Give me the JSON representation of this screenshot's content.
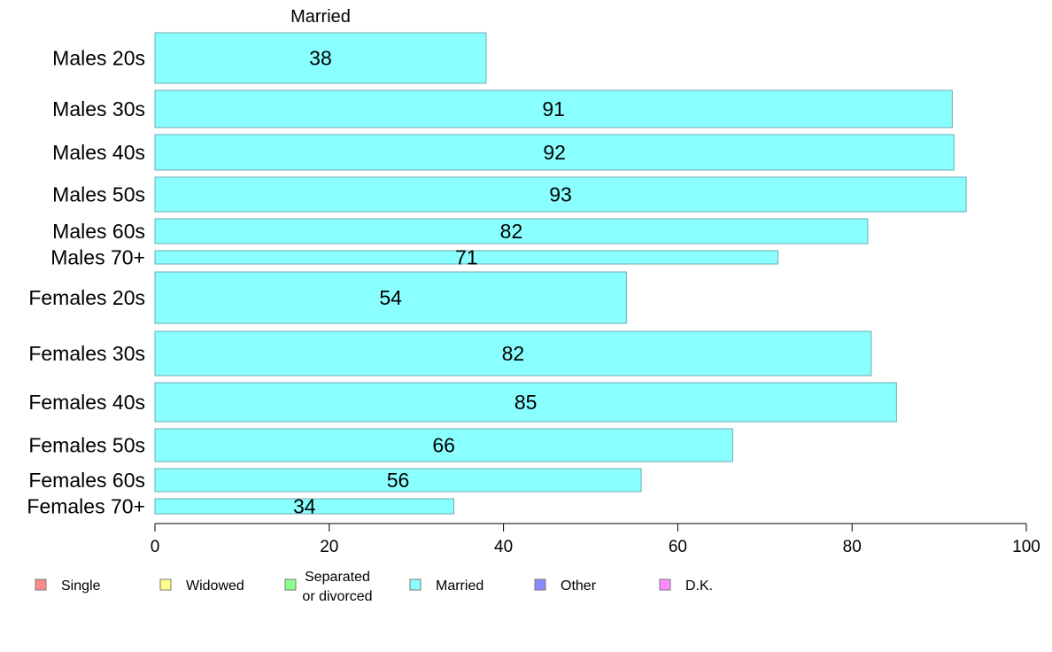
{
  "chart_data": {
    "type": "bar",
    "orientation": "horizontal",
    "stacked": true,
    "column_header": "Married",
    "categories": [
      "Males 20s",
      "Males 30s",
      "Males 40s",
      "Males 50s",
      "Males 60s",
      "Males 70+",
      "Females 20s",
      "Females 30s",
      "Females 40s",
      "Females 50s",
      "Females 60s",
      "Females 70+"
    ],
    "series": [
      {
        "name": "Married",
        "values": [
          38,
          91.5,
          91.7,
          93.1,
          81.8,
          71.5,
          54.1,
          82.2,
          85.1,
          66.3,
          55.8,
          34.3
        ]
      }
    ],
    "data_labels": [
      "38",
      "91",
      "92",
      "93",
      "82",
      "71",
      "54",
      "82",
      "85",
      "66",
      "56",
      "34"
    ],
    "xlim": [
      0,
      100
    ],
    "x_ticks": [
      "0",
      "20",
      "40",
      "60",
      "80",
      "100"
    ],
    "grid": false,
    "legend_position": "bottom",
    "legend": [
      {
        "label": "Single",
        "color": "#ff8a8a"
      },
      {
        "label": "Widowed",
        "color": "#ffff8a"
      },
      {
        "label": "Separated\nor divorced",
        "color": "#8aff8a"
      },
      {
        "label": "Married",
        "color": "#8affff"
      },
      {
        "label": "Other",
        "color": "#8a8aff"
      },
      {
        "label": "D.K.",
        "color": "#ff8aff"
      }
    ],
    "bar_color": "#8affff",
    "bar_edge_color": "#6aaeb0"
  }
}
